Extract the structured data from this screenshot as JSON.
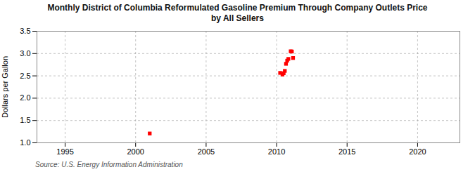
{
  "chart_data": {
    "type": "scatter",
    "title": "Monthly District of Columbia Reformulated Gasoline Premium Through Company Outlets Price\nby All Sellers",
    "ylabel": "Dollars per Gallon",
    "source": "Source: U.S. Energy Information Administration",
    "x": [
      2001.0,
      2010.25,
      2010.417,
      2010.5,
      2010.583,
      2010.667,
      2010.75,
      2010.833,
      2011.0,
      2011.083,
      2011.167
    ],
    "values": [
      1.209,
      2.566,
      2.529,
      2.559,
      2.611,
      2.77,
      2.84,
      2.88,
      3.05,
      3.045,
      2.9
    ],
    "color": "#ff0000",
    "marker": "square",
    "xlim": [
      1993,
      2023
    ],
    "xticks": [
      1995,
      2000,
      2005,
      2010,
      2015,
      2020
    ],
    "ylim": [
      1.0,
      3.5
    ],
    "yticks": [
      {
        "value": 1.0,
        "label": "1.0"
      },
      1.5,
      {
        "value": 2.0,
        "label": "2.0"
      },
      2.5,
      {
        "value": 3.0,
        "label": "3.0"
      },
      3.5
    ],
    "grid": true
  }
}
